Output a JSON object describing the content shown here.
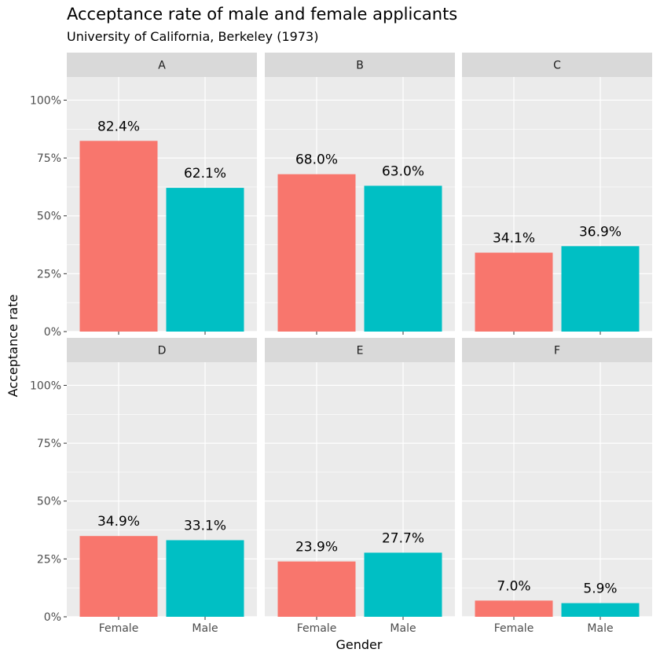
{
  "chart_data": {
    "type": "bar",
    "title": "Acceptance rate of male and female applicants",
    "subtitle": "University of California, Berkeley (1973)",
    "xlabel": "Gender",
    "ylabel": "Acceptance rate",
    "categories": [
      "Female",
      "Male"
    ],
    "ylim": [
      0,
      1.1
    ],
    "yticks": [
      0,
      0.25,
      0.5,
      0.75,
      1.0
    ],
    "ytick_labels": [
      "0%",
      "25%",
      "50%",
      "75%",
      "100%"
    ],
    "grid": true,
    "legend": "none",
    "colors": {
      "Female": "#F8766D",
      "Male": "#00BFC4"
    },
    "panels": [
      {
        "name": "A",
        "values": [
          0.824,
          0.621
        ],
        "labels": [
          "82.4%",
          "62.1%"
        ]
      },
      {
        "name": "B",
        "values": [
          0.68,
          0.63
        ],
        "labels": [
          "68.0%",
          "63.0%"
        ]
      },
      {
        "name": "C",
        "values": [
          0.341,
          0.369
        ],
        "labels": [
          "34.1%",
          "36.9%"
        ]
      },
      {
        "name": "D",
        "values": [
          0.349,
          0.331
        ],
        "labels": [
          "34.9%",
          "33.1%"
        ]
      },
      {
        "name": "E",
        "values": [
          0.239,
          0.277
        ],
        "labels": [
          "23.9%",
          "27.7%"
        ]
      },
      {
        "name": "F",
        "values": [
          0.07,
          0.059
        ],
        "labels": [
          "7.0%",
          "5.9%"
        ]
      }
    ]
  }
}
